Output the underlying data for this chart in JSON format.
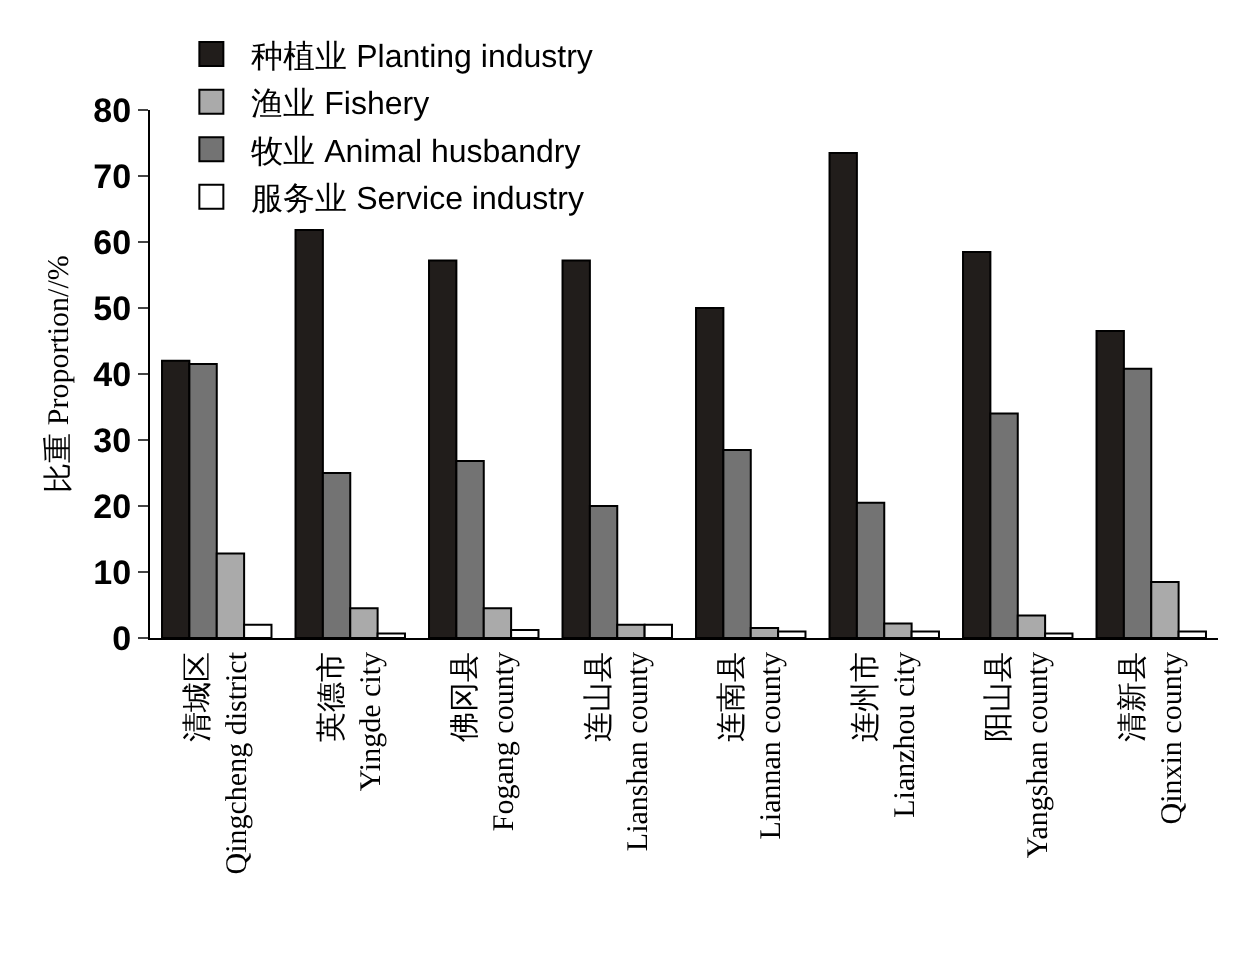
{
  "chart_data": {
    "type": "bar",
    "ylabel": "比重 Proportion//%",
    "categories": [
      "清城区\nQingcheng district",
      "英德市\nYingde city",
      "佛冈县\nFogang county",
      "连山县\nLianshan county",
      "连南县\nLiannan county",
      "连州市\nLianzhou city",
      "阳山县\nYangshan county",
      "清新县\nQinxin county"
    ],
    "series": [
      {
        "name": "种植业 Planting industry",
        "color": "#211d1b",
        "values": [
          42,
          61.8,
          57.2,
          57.2,
          50,
          73.5,
          58.5,
          46.5
        ]
      },
      {
        "name": "牧业 Animal husbandry",
        "color": "#737373",
        "values": [
          41.5,
          25,
          26.8,
          20,
          28.5,
          20.5,
          34,
          40.8
        ]
      },
      {
        "name": "渔业 Fishery",
        "color": "#aaaaaa",
        "values": [
          12.8,
          4.5,
          4.5,
          2,
          1.5,
          2.2,
          3.4,
          8.5
        ]
      },
      {
        "name": "服务业 Service industry",
        "color": "#ffffff",
        "values": [
          2,
          0.7,
          1.2,
          2,
          1,
          1,
          0.7,
          1
        ]
      }
    ],
    "ylim": [
      0,
      80
    ],
    "yticks": [
      0,
      10,
      20,
      30,
      40,
      50,
      60,
      70,
      80
    ],
    "grid": false,
    "legend": "top"
  }
}
